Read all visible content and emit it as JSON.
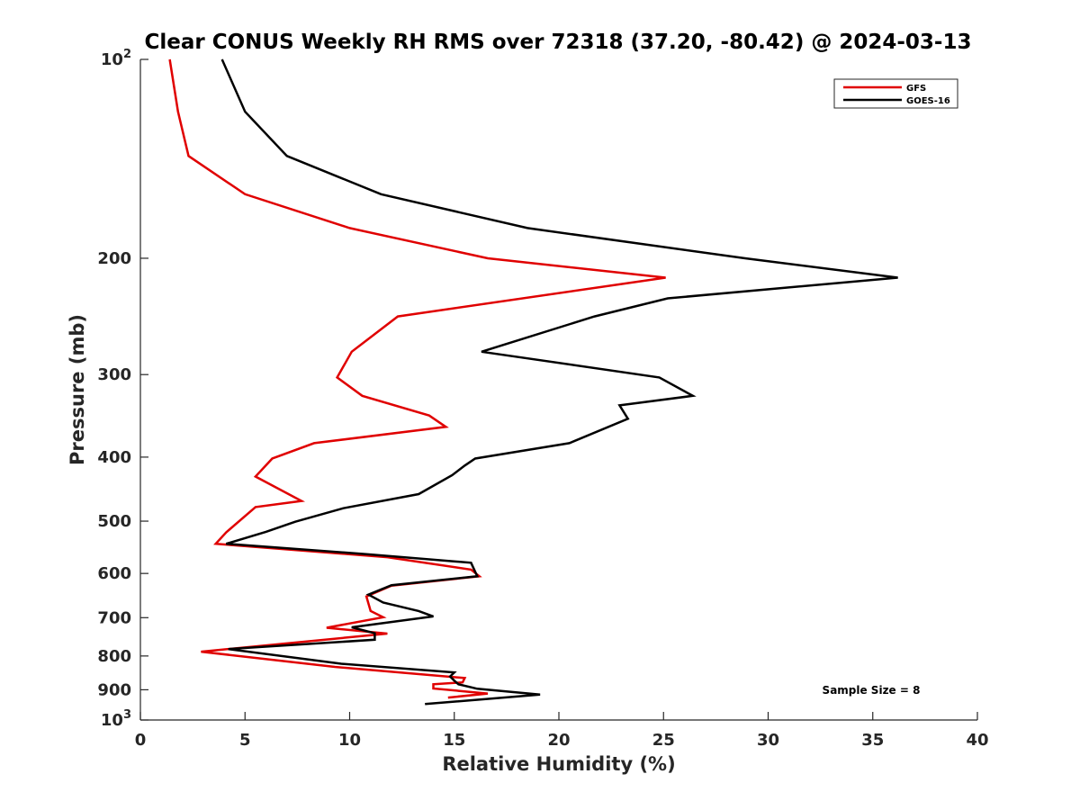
{
  "chart_data": {
    "type": "line",
    "title": "Clear CONUS Weekly RH RMS over 72318 (37.20, -80.42) @ 2024-03-13",
    "xlabel": "Relative Humidity (%)",
    "ylabel": "Pressure (mb)",
    "xlim": [
      0,
      40
    ],
    "ylim": [
      100,
      1000
    ],
    "y_scale": "log-reversed",
    "x_ticks": [
      0,
      5,
      10,
      15,
      20,
      25,
      30,
      35,
      40
    ],
    "x_tick_labels": [
      "0",
      "5",
      "10",
      "15",
      "20",
      "25",
      "30",
      "35",
      "40"
    ],
    "y_ticks": [
      200,
      300,
      400,
      500,
      600,
      700,
      800,
      900
    ],
    "y_tick_labels": [
      "200",
      "300",
      "400",
      "500",
      "600",
      "700",
      "800",
      "900"
    ],
    "y_edge_labels": [
      {
        "value": 100,
        "base": "10",
        "exp": "2"
      },
      {
        "value": 1000,
        "base": "10",
        "exp": "3"
      }
    ],
    "grid": false,
    "legend": "top-right",
    "annotation": "Sample Size = 8",
    "series": [
      {
        "name": "GFS",
        "color": "#e00000",
        "x": [
          1.4,
          1.8,
          2.3,
          5.0,
          10.0,
          16.6,
          25.1,
          12.3,
          10.1,
          9.4,
          10.6,
          13.8,
          14.6,
          8.3,
          6.3,
          5.5,
          7.7,
          5.5,
          4.1,
          3.6,
          11.8,
          15.8,
          16.2,
          12.0,
          10.8,
          11.0,
          11.6,
          8.9,
          11.8,
          2.9,
          9.3,
          15.5,
          15.4,
          14.0,
          14.0,
          16.6,
          14.7
        ],
        "y": [
          100,
          120,
          140,
          160,
          180,
          200,
          214,
          245,
          277,
          303,
          323,
          346,
          360,
          381,
          402,
          428,
          466,
          476,
          520,
          541,
          567,
          592,
          606,
          626,
          650,
          684,
          699,
          725,
          740,
          788,
          831,
          864,
          877,
          883,
          896,
          912,
          925
        ]
      },
      {
        "name": "GOES-16",
        "color": "#000000",
        "x": [
          3.9,
          5.0,
          7.0,
          11.5,
          18.5,
          28.9,
          36.2,
          25.2,
          21.7,
          16.3,
          24.8,
          26.4,
          22.9,
          23.3,
          20.5,
          16.0,
          15.5,
          14.9,
          13.3,
          9.7,
          7.4,
          6.0,
          4.1,
          10.8,
          15.8,
          16.1,
          12.0,
          10.9,
          11.6,
          13.3,
          14.0,
          10.1,
          11.2,
          11.2,
          4.2,
          9.6,
          15.0,
          14.8,
          15.0,
          15.2,
          16.1,
          19.1,
          13.6
        ],
        "y": [
          100,
          120,
          140,
          160,
          180,
          200,
          214,
          230,
          245,
          277,
          303,
          323,
          334,
          350,
          381,
          402,
          412,
          426,
          455,
          478,
          501,
          519,
          541,
          561,
          578,
          606,
          625,
          646,
          664,
          684,
          697,
          724,
          739,
          756,
          781,
          822,
          847,
          859,
          872,
          883,
          897,
          915,
          946
        ]
      }
    ]
  }
}
